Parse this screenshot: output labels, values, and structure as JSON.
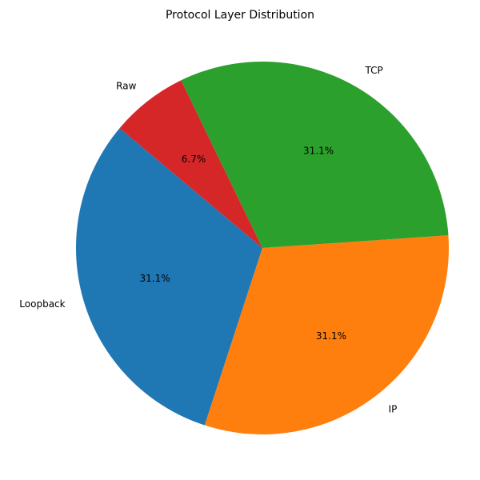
{
  "chart_data": {
    "type": "pie",
    "title": "Protocol Layer Distribution",
    "slices": [
      {
        "label": "Loopback",
        "value": 31.1,
        "pct_label": "31.1%",
        "color": "#1f77b4"
      },
      {
        "label": "IP",
        "value": 31.1,
        "pct_label": "31.1%",
        "color": "#ff7f0e"
      },
      {
        "label": "TCP",
        "value": 31.1,
        "pct_label": "31.1%",
        "color": "#2ca02c"
      },
      {
        "label": "Raw",
        "value": 6.7,
        "pct_label": "6.7%",
        "color": "#d62728"
      }
    ]
  }
}
